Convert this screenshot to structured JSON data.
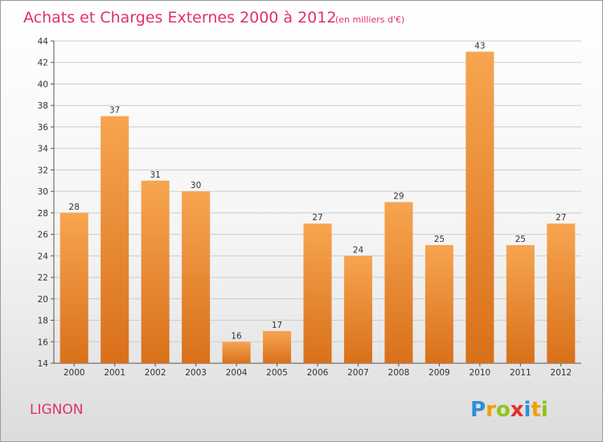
{
  "title": "Achats et Charges Externes 2000 à 2012",
  "subtitle": "(en milliers d'€)",
  "place": "LIGNON",
  "logo": {
    "letters": [
      {
        "ch": "P",
        "color": "#2e8fd8"
      },
      {
        "ch": "r",
        "color": "#f0a000"
      },
      {
        "ch": "o",
        "color": "#8fc31f"
      },
      {
        "ch": "x",
        "color": "#e8302a"
      },
      {
        "ch": "i",
        "color": "#2e8fd8"
      },
      {
        "ch": "t",
        "color": "#f0a000"
      },
      {
        "ch": "i",
        "color": "#8fc31f"
      }
    ]
  },
  "colors": {
    "bar_light": "#f7a550",
    "bar_dark": "#d9701a",
    "accent": "#e0306a",
    "grid": "#cccccc"
  },
  "chart_data": {
    "type": "bar",
    "title": "Achats et Charges Externes 2000 à 2012",
    "subtitle": "(en milliers d'€)",
    "xlabel": "",
    "ylabel": "",
    "categories": [
      "2000",
      "2001",
      "2002",
      "2003",
      "2004",
      "2005",
      "2006",
      "2007",
      "2008",
      "2009",
      "2010",
      "2011",
      "2012"
    ],
    "values": [
      28,
      37,
      31,
      30,
      16,
      17,
      27,
      24,
      29,
      25,
      43,
      25,
      27
    ],
    "ylim": [
      14,
      44
    ],
    "yticks": [
      14,
      16,
      18,
      20,
      22,
      24,
      26,
      28,
      30,
      32,
      34,
      36,
      38,
      40,
      42,
      44
    ],
    "grid": true,
    "legend": "none"
  }
}
